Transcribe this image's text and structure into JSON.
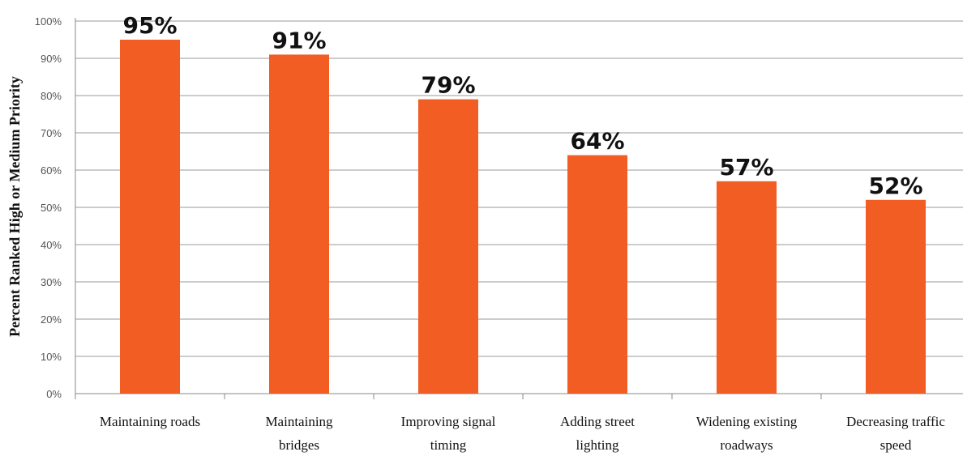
{
  "chart_data": {
    "type": "bar",
    "title": "",
    "xlabel": "",
    "ylabel": "Percent Ranked High or Medium Priority",
    "categories": [
      [
        "Maintaining roads"
      ],
      [
        "Maintaining",
        "bridges"
      ],
      [
        "Improving signal",
        "timing"
      ],
      [
        "Adding street",
        "lighting"
      ],
      [
        "Widening existing",
        "roadways"
      ],
      [
        "Decreasing traffic",
        "speed"
      ]
    ],
    "values": [
      95,
      91,
      79,
      64,
      57,
      52
    ],
    "data_labels": [
      "95%",
      "91%",
      "79%",
      "64%",
      "57%",
      "52%"
    ],
    "ylim": [
      0,
      100
    ],
    "yticks": [
      0,
      10,
      20,
      30,
      40,
      50,
      60,
      70,
      80,
      90,
      100
    ],
    "ytick_labels": [
      "0%",
      "10%",
      "20%",
      "30%",
      "40%",
      "50%",
      "60%",
      "70%",
      "80%",
      "90%",
      "100%"
    ],
    "grid": true,
    "legend": "none",
    "colors": {
      "bar": "#F15D22",
      "grid": "#9a9a9a",
      "axis": "#888888"
    }
  }
}
